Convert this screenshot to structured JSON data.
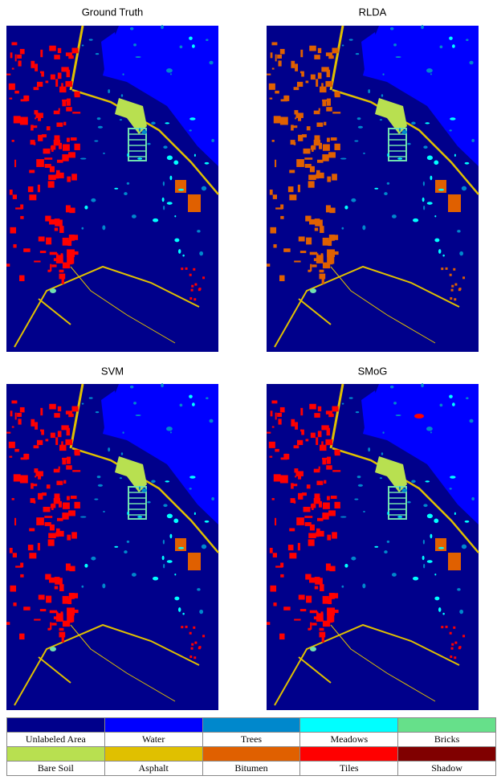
{
  "panels": [
    {
      "title": "Ground Truth"
    },
    {
      "title": "RLDA"
    },
    {
      "title": "SVM"
    },
    {
      "title": "SMoG"
    }
  ],
  "legend": [
    {
      "label": "Unlabeled Area",
      "color": "#00008b"
    },
    {
      "label": "Water",
      "color": "#0000ff"
    },
    {
      "label": "Trees",
      "color": "#0088cc"
    },
    {
      "label": "Meadows",
      "color": "#00ffff"
    },
    {
      "label": "Bricks",
      "color": "#66e08a"
    },
    {
      "label": "Bare Soil",
      "color": "#b8e050"
    },
    {
      "label": "Asphalt",
      "color": "#e0c000"
    },
    {
      "label": "Bitumen",
      "color": "#e06000"
    },
    {
      "label": "Tiles",
      "color": "#ff0000"
    },
    {
      "label": "Shadow",
      "color": "#800000"
    }
  ]
}
